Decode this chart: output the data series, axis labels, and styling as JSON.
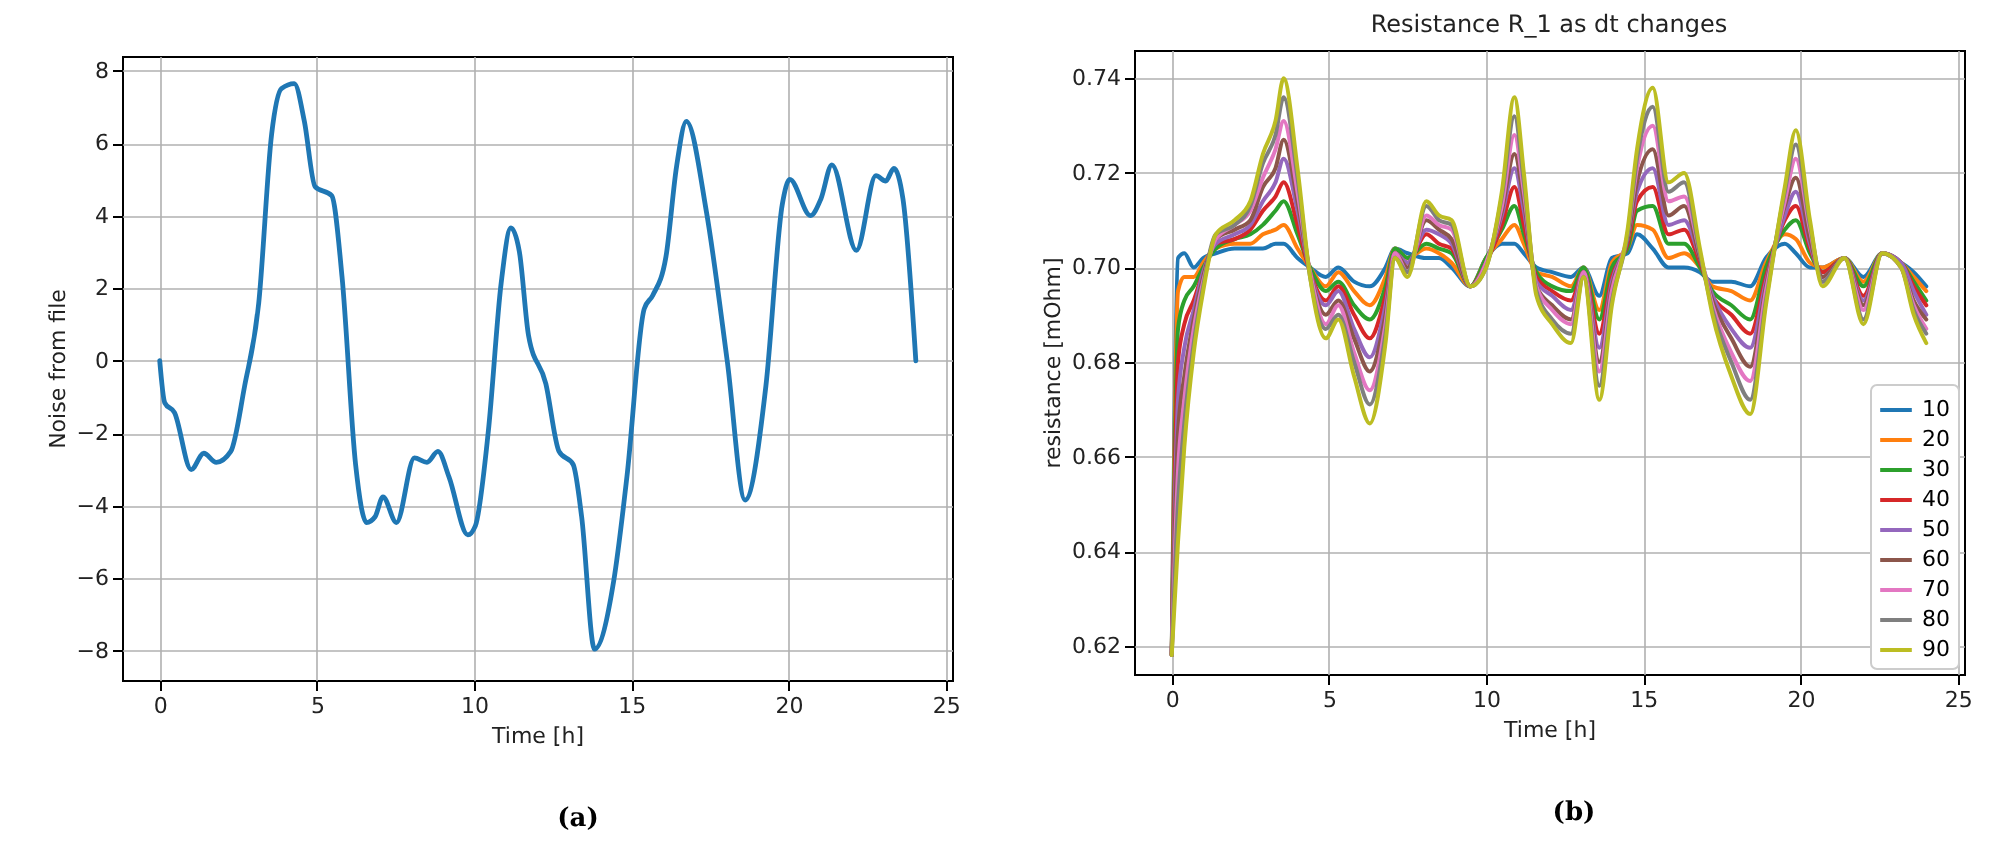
{
  "chart_data": [
    {
      "type": "line",
      "xlabel": "Time [h]",
      "ylabel": "Noise from file",
      "annotations": [
        "(a)"
      ],
      "grid": true,
      "legend": false,
      "xlim": [
        -1.2,
        25.2
      ],
      "xticks": [
        0,
        5,
        10,
        15,
        20,
        25
      ],
      "ylim": [
        -8.8,
        8.4
      ],
      "yticks": [
        {
          "value": -8,
          "label": "−8"
        },
        {
          "value": -6,
          "label": "−6"
        },
        {
          "value": -4,
          "label": "−4"
        },
        {
          "value": -2,
          "label": "−2"
        },
        0,
        2,
        4,
        6,
        8
      ],
      "x": [
        0,
        0.16,
        0.47,
        1.0,
        1.4,
        1.8,
        2.26,
        2.7,
        3.15,
        3.56,
        3.87,
        4.28,
        4.6,
        4.94,
        5.47,
        5.8,
        6.23,
        6.58,
        6.85,
        7.1,
        7.53,
        8.1,
        8.5,
        8.85,
        9.2,
        9.8,
        10.04,
        10.45,
        10.86,
        11.17,
        11.44,
        11.73,
        12.28,
        12.7,
        13.15,
        13.42,
        13.83,
        14.44,
        14.86,
        15.41,
        15.68,
        16.1,
        16.44,
        16.75,
        17.39,
        18.05,
        18.62,
        19.28,
        19.8,
        20.04,
        20.7,
        21.03,
        21.38,
        22.16,
        22.78,
        23.09,
        23.35,
        23.64,
        24.05
      ],
      "series": [
        {
          "color": "#1f77b4",
          "values": [
            0,
            -1.16,
            -1.43,
            -3.0,
            -2.55,
            -2.8,
            -2.5,
            -0.7,
            1.6,
            6.25,
            7.5,
            7.64,
            6.6,
            4.8,
            4.55,
            2.3,
            -2.86,
            -4.46,
            -4.3,
            -3.75,
            -4.46,
            -2.68,
            -2.8,
            -2.5,
            -3.2,
            -4.8,
            -4.55,
            -1.96,
            2.14,
            3.66,
            3.0,
            0.7,
            -0.63,
            -2.5,
            -2.86,
            -4.3,
            -7.95,
            -6.07,
            -3.2,
            1.43,
            1.8,
            2.86,
            5.36,
            6.6,
            4.1,
            0,
            -3.84,
            -0.7,
            4.3,
            5.0,
            4.0,
            4.46,
            5.4,
            3.04,
            5.1,
            4.95,
            5.3,
            4.46,
            0
          ]
        }
      ]
    },
    {
      "type": "line",
      "title": "Resistance R_1 as dt changes",
      "xlabel": "Time [h]",
      "ylabel": "resistance [mOhm]",
      "annotations": [
        "(b)"
      ],
      "grid": true,
      "legend": "bottom right",
      "xlim": [
        -1.2,
        25.2
      ],
      "xticks": [
        0,
        5,
        10,
        15,
        20,
        25
      ],
      "ylim": [
        0.614,
        0.746
      ],
      "yticks": [
        0.62,
        0.64,
        0.66,
        0.68,
        {
          "value": 0.7,
          "label": "0.70"
        },
        0.72,
        0.74
      ],
      "x": [
        0,
        0.2,
        0.4,
        0.7,
        1,
        1.4,
        2,
        2.5,
        2.9,
        3.3,
        3.56,
        4,
        4.4,
        4.9,
        5.3,
        5.8,
        6.3,
        6.8,
        7.1,
        7.5,
        8.1,
        8.5,
        8.9,
        9.5,
        10,
        10.5,
        10.9,
        11.2,
        11.6,
        12.1,
        12.7,
        13.1,
        13.6,
        14,
        14.5,
        14.8,
        15.3,
        15.8,
        16.3,
        16.8,
        17.2,
        17.8,
        18.4,
        18.9,
        19.5,
        19.85,
        20.3,
        20.7,
        21.4,
        22,
        22.6,
        23.2,
        23.6,
        24
      ],
      "series": [
        {
          "name": "10",
          "color": "#1f77b4",
          "values": [
            0.618,
            0.702,
            0.703,
            0.7,
            0.702,
            0.703,
            0.704,
            0.704,
            0.704,
            0.705,
            0.705,
            0.702,
            0.7,
            0.698,
            0.7,
            0.697,
            0.696,
            0.7,
            0.704,
            0.703,
            0.702,
            0.702,
            0.7,
            0.696,
            0.702,
            0.705,
            0.705,
            0.703,
            0.7,
            0.699,
            0.698,
            0.7,
            0.694,
            0.702,
            0.703,
            0.707,
            0.704,
            0.7,
            0.7,
            0.699,
            0.697,
            0.697,
            0.696,
            0.702,
            0.705,
            0.703,
            0.7,
            0.7,
            0.702,
            0.698,
            0.703,
            0.701,
            0.699,
            0.696
          ]
        },
        {
          "name": "20",
          "color": "#ff7f0e",
          "values": [
            0.618,
            0.695,
            0.698,
            0.698,
            0.701,
            0.704,
            0.705,
            0.705,
            0.707,
            0.708,
            0.709,
            0.704,
            0.7,
            0.696,
            0.699,
            0.695,
            0.692,
            0.698,
            0.704,
            0.702,
            0.704,
            0.703,
            0.701,
            0.696,
            0.702,
            0.706,
            0.709,
            0.705,
            0.699,
            0.698,
            0.696,
            0.7,
            0.691,
            0.701,
            0.704,
            0.709,
            0.708,
            0.702,
            0.703,
            0.7,
            0.696,
            0.695,
            0.693,
            0.701,
            0.707,
            0.706,
            0.701,
            0.7,
            0.702,
            0.697,
            0.703,
            0.701,
            0.698,
            0.695
          ]
        },
        {
          "name": "30",
          "color": "#2ca02c",
          "values": [
            0.618,
            0.687,
            0.693,
            0.696,
            0.7,
            0.704,
            0.706,
            0.707,
            0.709,
            0.712,
            0.714,
            0.707,
            0.7,
            0.695,
            0.697,
            0.692,
            0.689,
            0.696,
            0.704,
            0.702,
            0.705,
            0.704,
            0.703,
            0.696,
            0.702,
            0.708,
            0.713,
            0.707,
            0.699,
            0.696,
            0.695,
            0.7,
            0.689,
            0.7,
            0.704,
            0.712,
            0.713,
            0.705,
            0.705,
            0.7,
            0.695,
            0.692,
            0.689,
            0.7,
            0.708,
            0.71,
            0.703,
            0.699,
            0.702,
            0.696,
            0.703,
            0.701,
            0.697,
            0.693
          ]
        },
        {
          "name": "40",
          "color": "#d62728",
          "values": [
            0.618,
            0.68,
            0.688,
            0.693,
            0.699,
            0.705,
            0.706,
            0.708,
            0.712,
            0.715,
            0.718,
            0.709,
            0.699,
            0.693,
            0.696,
            0.69,
            0.685,
            0.694,
            0.703,
            0.701,
            0.707,
            0.705,
            0.704,
            0.696,
            0.701,
            0.709,
            0.717,
            0.709,
            0.698,
            0.695,
            0.693,
            0.699,
            0.686,
            0.698,
            0.705,
            0.714,
            0.717,
            0.707,
            0.708,
            0.701,
            0.694,
            0.69,
            0.686,
            0.698,
            0.71,
            0.713,
            0.704,
            0.699,
            0.702,
            0.694,
            0.703,
            0.701,
            0.696,
            0.692
          ]
        },
        {
          "name": "50",
          "color": "#9467bd",
          "values": [
            0.618,
            0.672,
            0.683,
            0.691,
            0.699,
            0.705,
            0.707,
            0.709,
            0.714,
            0.718,
            0.723,
            0.712,
            0.699,
            0.692,
            0.695,
            0.687,
            0.681,
            0.692,
            0.703,
            0.701,
            0.708,
            0.707,
            0.705,
            0.696,
            0.701,
            0.711,
            0.721,
            0.712,
            0.697,
            0.694,
            0.691,
            0.699,
            0.683,
            0.697,
            0.706,
            0.716,
            0.721,
            0.709,
            0.71,
            0.702,
            0.694,
            0.687,
            0.683,
            0.697,
            0.711,
            0.716,
            0.705,
            0.698,
            0.702,
            0.693,
            0.703,
            0.701,
            0.695,
            0.69
          ]
        },
        {
          "name": "60",
          "color": "#8c564b",
          "values": [
            0.618,
            0.665,
            0.677,
            0.689,
            0.698,
            0.706,
            0.708,
            0.71,
            0.717,
            0.721,
            0.727,
            0.714,
            0.699,
            0.69,
            0.693,
            0.685,
            0.678,
            0.69,
            0.703,
            0.7,
            0.71,
            0.708,
            0.706,
            0.696,
            0.701,
            0.712,
            0.724,
            0.714,
            0.696,
            0.692,
            0.689,
            0.699,
            0.68,
            0.696,
            0.706,
            0.718,
            0.725,
            0.711,
            0.713,
            0.702,
            0.693,
            0.685,
            0.679,
            0.696,
            0.713,
            0.719,
            0.706,
            0.698,
            0.702,
            0.692,
            0.703,
            0.7,
            0.693,
            0.689
          ]
        },
        {
          "name": "70",
          "color": "#e377c2",
          "values": [
            0.618,
            0.657,
            0.672,
            0.687,
            0.697,
            0.706,
            0.709,
            0.712,
            0.719,
            0.725,
            0.731,
            0.716,
            0.699,
            0.688,
            0.692,
            0.682,
            0.674,
            0.688,
            0.703,
            0.699,
            0.711,
            0.709,
            0.708,
            0.696,
            0.701,
            0.713,
            0.728,
            0.716,
            0.696,
            0.691,
            0.688,
            0.699,
            0.678,
            0.695,
            0.707,
            0.721,
            0.73,
            0.714,
            0.715,
            0.703,
            0.692,
            0.682,
            0.676,
            0.695,
            0.714,
            0.723,
            0.708,
            0.697,
            0.702,
            0.691,
            0.703,
            0.7,
            0.692,
            0.687
          ]
        },
        {
          "name": "80",
          "color": "#7f7f7f",
          "values": [
            0.618,
            0.65,
            0.667,
            0.684,
            0.696,
            0.707,
            0.709,
            0.713,
            0.722,
            0.728,
            0.736,
            0.719,
            0.698,
            0.687,
            0.69,
            0.68,
            0.671,
            0.686,
            0.702,
            0.699,
            0.713,
            0.71,
            0.709,
            0.696,
            0.7,
            0.715,
            0.732,
            0.718,
            0.695,
            0.689,
            0.686,
            0.698,
            0.675,
            0.693,
            0.707,
            0.723,
            0.734,
            0.716,
            0.718,
            0.703,
            0.691,
            0.68,
            0.672,
            0.693,
            0.716,
            0.726,
            0.709,
            0.697,
            0.702,
            0.689,
            0.703,
            0.7,
            0.691,
            0.686
          ]
        },
        {
          "name": "90",
          "color": "#bcbd22",
          "values": [
            0.618,
            0.642,
            0.662,
            0.682,
            0.695,
            0.707,
            0.71,
            0.714,
            0.724,
            0.731,
            0.74,
            0.721,
            0.698,
            0.685,
            0.689,
            0.677,
            0.667,
            0.684,
            0.702,
            0.698,
            0.714,
            0.711,
            0.71,
            0.696,
            0.7,
            0.716,
            0.736,
            0.72,
            0.694,
            0.688,
            0.684,
            0.698,
            0.672,
            0.692,
            0.708,
            0.725,
            0.738,
            0.718,
            0.72,
            0.704,
            0.69,
            0.677,
            0.669,
            0.692,
            0.717,
            0.729,
            0.71,
            0.696,
            0.702,
            0.688,
            0.703,
            0.7,
            0.69,
            0.684
          ]
        }
      ]
    }
  ]
}
